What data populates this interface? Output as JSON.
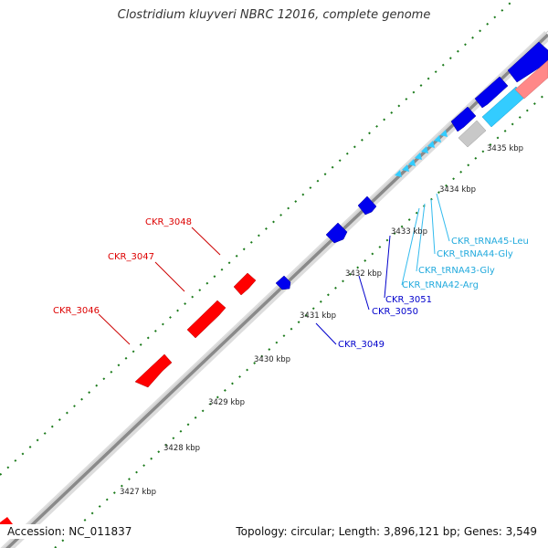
{
  "title": "Clostridium kluyveri NBRC 12016, complete genome",
  "accession": "Accession: NC_011837",
  "summary": "Topology: circular; Length: 3,896,121 bp; Genes: 3,549",
  "colors": {
    "forward_gene": "#ff0000",
    "reverse_gene": "#0000ee",
    "trna": "#33ccff",
    "rrna": "#ff8888",
    "backbone": "#888888",
    "tick": "#1a7a1a"
  },
  "kbp_labels": [
    "3427 kbp",
    "3428 kbp",
    "3429 kbp",
    "3430 kbp",
    "3431 kbp",
    "3432 kbp",
    "3433 kbp",
    "3434 kbp",
    "3435 kbp"
  ],
  "forward_labels": [
    "CKR_3046",
    "CKR_3047",
    "CKR_3048"
  ],
  "reverse_labels": [
    "CKR_3049",
    "CKR_3050",
    "CKR_3051"
  ],
  "trna_labels": [
    "CKR_tRNA42-Arg",
    "CKR_tRNA43-Gly",
    "CKR_tRNA44-Gly",
    "CKR_tRNA45-Leu"
  ]
}
